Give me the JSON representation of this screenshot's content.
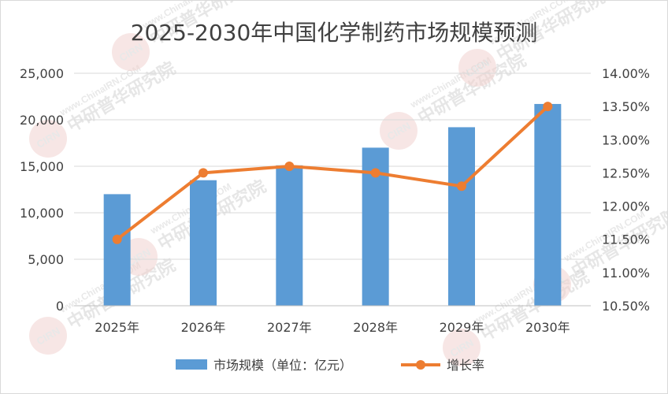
{
  "chart_data": {
    "type": "bar",
    "title": "2025-2030年中国化学制药市场规模预测",
    "categories": [
      "2025年",
      "2026年",
      "2027年",
      "2028年",
      "2029年",
      "2030年"
    ],
    "series": [
      {
        "name": "市场规模（单位：亿元）",
        "type": "bar",
        "axis": "left",
        "color": "#5b9bd5",
        "values": [
          12000,
          13500,
          15100,
          17000,
          19200,
          21700
        ]
      },
      {
        "name": "增长率",
        "type": "line",
        "axis": "right",
        "color": "#ed7d31",
        "values": [
          11.5,
          12.5,
          12.6,
          12.5,
          12.3,
          13.5
        ]
      }
    ],
    "y_left": {
      "min": 0,
      "max": 25000,
      "ticks": [
        0,
        5000,
        10000,
        15000,
        20000,
        25000
      ],
      "tick_labels": [
        "0",
        "5,000",
        "10,000",
        "15,000",
        "20,000",
        "25,000"
      ]
    },
    "y_right": {
      "min": 10.5,
      "max": 14.0,
      "ticks": [
        10.5,
        11.0,
        11.5,
        12.0,
        12.5,
        13.0,
        13.5,
        14.0
      ],
      "tick_labels": [
        "10.50%",
        "11.00%",
        "11.50%",
        "12.00%",
        "12.50%",
        "13.00%",
        "13.50%",
        "14.00%"
      ]
    },
    "grid": true,
    "legend_position": "bottom"
  },
  "watermark": {
    "url": "www.ChinaIRN.COM",
    "name": "中研普华研究院",
    "logo": "CIRN"
  }
}
